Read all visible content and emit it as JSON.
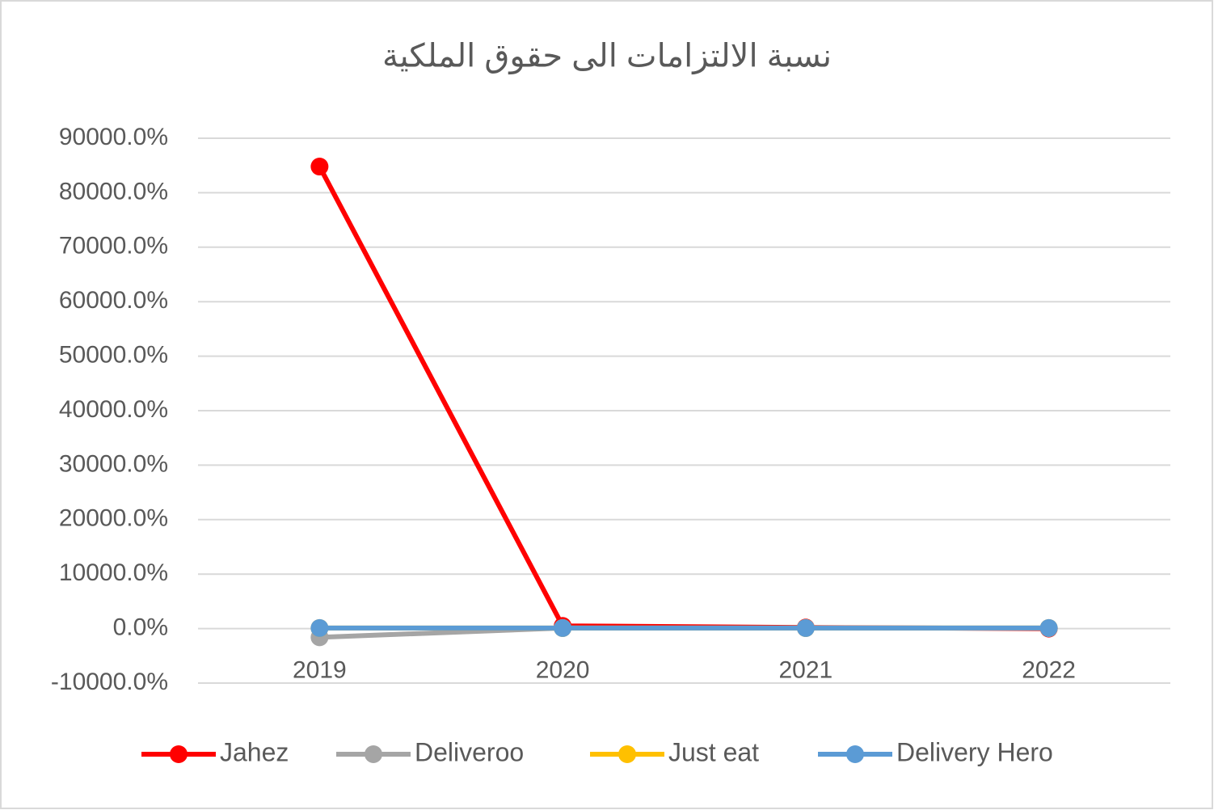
{
  "chart_data": {
    "type": "line",
    "title": "نسبة الالتزامات الى حقوق الملكية",
    "categories": [
      "2019",
      "2020",
      "2021",
      "2022"
    ],
    "series": [
      {
        "name": "Jahez",
        "color": "#ff0000",
        "values": [
          84800,
          500,
          200,
          0
        ]
      },
      {
        "name": "Deliveroo",
        "color": "#a5a5a5",
        "values": [
          -1600,
          100,
          100,
          100
        ]
      },
      {
        "name": "Just eat",
        "color": "#ffc000",
        "values": [
          100,
          100,
          100,
          100
        ]
      },
      {
        "name": "Delivery Hero",
        "color": "#5b9bd5",
        "values": [
          100,
          100,
          100,
          100
        ]
      }
    ],
    "ylim": [
      -10000,
      90000
    ],
    "yticks": [
      {
        "value": -10000,
        "label": "-10000.0%"
      },
      {
        "value": 0,
        "label": "0.0%"
      },
      {
        "value": 10000,
        "label": "10000.0%"
      },
      {
        "value": 20000,
        "label": "20000.0%"
      },
      {
        "value": 30000,
        "label": "30000.0%"
      },
      {
        "value": 40000,
        "label": "40000.0%"
      },
      {
        "value": 50000,
        "label": "50000.0%"
      },
      {
        "value": 60000,
        "label": "60000.0%"
      },
      {
        "value": 70000,
        "label": "70000.0%"
      },
      {
        "value": 80000,
        "label": "80000.0%"
      },
      {
        "value": 90000,
        "label": "90000.0%"
      }
    ],
    "grid": true,
    "legend": "bottom"
  }
}
